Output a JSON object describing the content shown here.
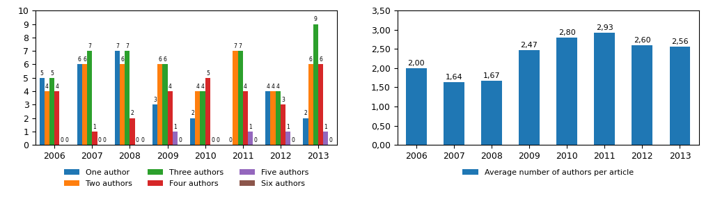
{
  "chart_data": [
    {
      "type": "bar",
      "categories": [
        "2006",
        "2007",
        "2008",
        "2009",
        "2010",
        "2011",
        "2012",
        "2013"
      ],
      "series": [
        {
          "name": "One author",
          "values": [
            5,
            6,
            7,
            3,
            2,
            0,
            4,
            2
          ]
        },
        {
          "name": "Two authors",
          "values": [
            4,
            6,
            6,
            6,
            4,
            7,
            4,
            6
          ]
        },
        {
          "name": "Three authors",
          "values": [
            5,
            7,
            7,
            6,
            4,
            7,
            4,
            9
          ]
        },
        {
          "name": "Four authors",
          "values": [
            4,
            1,
            2,
            4,
            5,
            4,
            3,
            6
          ]
        },
        {
          "name": "Five authors",
          "values": [
            0,
            0,
            0,
            1,
            0,
            1,
            1,
            1
          ]
        },
        {
          "name": "Six authors",
          "values": [
            0,
            0,
            0,
            0,
            0,
            0,
            0,
            0
          ]
        }
      ],
      "ylim": [
        0,
        10
      ],
      "yticks": [
        0,
        1,
        2,
        3,
        4,
        5,
        6,
        7,
        8,
        9,
        10
      ],
      "data_labels": true,
      "legend": "below"
    },
    {
      "type": "bar",
      "categories": [
        "2006",
        "2007",
        "2008",
        "2009",
        "2010",
        "2011",
        "2012",
        "2013"
      ],
      "series": [
        {
          "name": "Average number of authors per article",
          "values": [
            2.0,
            1.64,
            1.67,
            2.47,
            2.8,
            2.93,
            2.6,
            2.56
          ],
          "value_labels": [
            "2,00",
            "1,64",
            "1,67",
            "2,47",
            "2,80",
            "2,93",
            "2,60",
            "2,56"
          ]
        }
      ],
      "ylim": [
        0,
        3.5
      ],
      "yticks": [
        {
          "value": 0.0,
          "label": "0,00"
        },
        {
          "value": 0.5,
          "label": "0,50"
        },
        {
          "value": 1.0,
          "label": "1,00"
        },
        {
          "value": 1.5,
          "label": "1,50"
        },
        {
          "value": 2.0,
          "label": "2,00"
        },
        {
          "value": 2.5,
          "label": "2,50"
        },
        {
          "value": 3.0,
          "label": "3,00"
        },
        {
          "value": 3.5,
          "label": "3,50"
        }
      ],
      "data_labels": true,
      "legend": "below"
    }
  ]
}
